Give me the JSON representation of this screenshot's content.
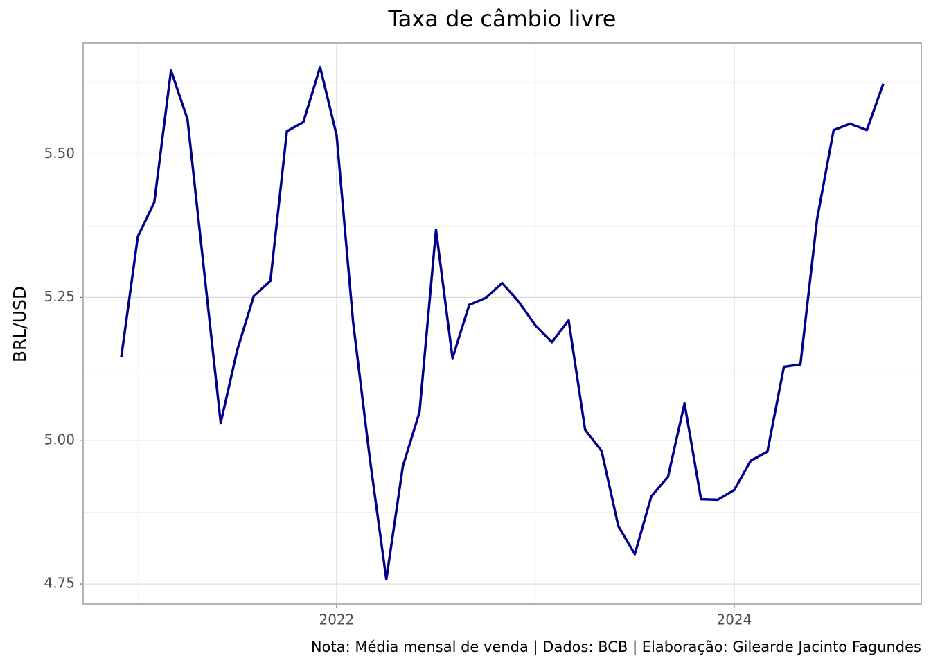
{
  "chart_data": {
    "type": "line",
    "title": "Taxa de câmbio livre",
    "y_label": "BRL/USD",
    "caption": "Nota: Média mensal de venda | Dados: BCB | Elaboração: Gilearde Jacinto Fagundes",
    "x": [
      2020.917,
      2021.0,
      2021.083,
      2021.167,
      2021.25,
      2021.333,
      2021.417,
      2021.5,
      2021.583,
      2021.667,
      2021.75,
      2021.833,
      2021.917,
      2022.0,
      2022.083,
      2022.167,
      2022.25,
      2022.333,
      2022.417,
      2022.5,
      2022.583,
      2022.667,
      2022.75,
      2022.833,
      2022.917,
      2023.0,
      2023.083,
      2023.167,
      2023.25,
      2023.333,
      2023.417,
      2023.5,
      2023.583,
      2023.667,
      2023.75,
      2023.833,
      2023.917,
      2024.0,
      2024.083,
      2024.167,
      2024.25,
      2024.333,
      2024.417,
      2024.5,
      2024.583,
      2024.667,
      2024.75
    ],
    "series": [
      {
        "name": "BRL/USD",
        "color": "#00008b",
        "values": [
          5.146,
          5.356,
          5.416,
          5.646,
          5.561,
          5.298,
          5.031,
          5.158,
          5.252,
          5.279,
          5.54,
          5.556,
          5.652,
          5.533,
          5.207,
          4.969,
          4.758,
          4.955,
          5.05,
          5.368,
          5.144,
          5.237,
          5.249,
          5.275,
          5.242,
          5.201,
          5.172,
          5.21,
          5.019,
          4.982,
          4.851,
          4.802,
          4.903,
          4.937,
          5.065,
          4.898,
          4.897,
          4.914,
          4.965,
          4.981,
          5.129,
          5.133,
          5.387,
          5.542,
          5.553,
          5.542,
          5.623
        ]
      }
    ],
    "xlim": [
      2020.725,
      2024.941
    ],
    "xticks": [
      2022,
      2024
    ],
    "xminorticks": [
      2021,
      2023
    ],
    "ylim": [
      4.715,
      5.694
    ],
    "yticks": [
      {
        "value": 4.75,
        "label": "4.75"
      },
      {
        "value": 5.0,
        "label": "5.00"
      },
      {
        "value": 5.25,
        "label": "5.25"
      },
      {
        "value": 5.5,
        "label": "5.50"
      }
    ],
    "yminorticks": [
      4.875,
      5.125,
      5.375,
      5.625
    ],
    "grid": true
  }
}
